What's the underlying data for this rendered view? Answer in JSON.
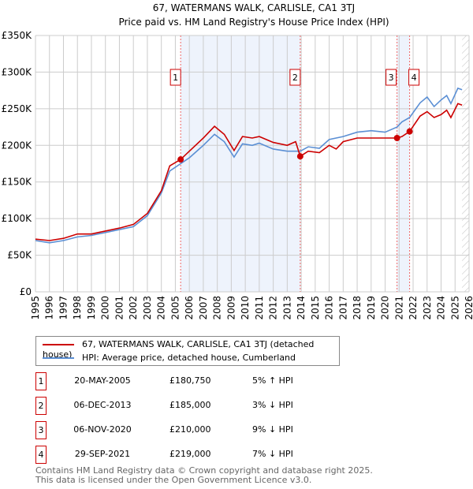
{
  "chart_data": {
    "type": "line",
    "title": "67, WATERMANS WALK, CARLISLE, CA1 3TJ",
    "subtitle": "Price paid vs. HM Land Registry's House Price Index (HPI)",
    "xlim": [
      1995,
      2026
    ],
    "ylim": [
      0,
      350000
    ],
    "x_ticks": [
      "1995",
      "1996",
      "1997",
      "1998",
      "1999",
      "2000",
      "2001",
      "2002",
      "2003",
      "2004",
      "2005",
      "2006",
      "2007",
      "2008",
      "2009",
      "2010",
      "2011",
      "2012",
      "2013",
      "2014",
      "2015",
      "2016",
      "2017",
      "2018",
      "2019",
      "2020",
      "2021",
      "2022",
      "2023",
      "2024",
      "2025",
      "2026"
    ],
    "y_ticks": [
      {
        "v": 0,
        "label": "£0"
      },
      {
        "v": 50000,
        "label": "£50K"
      },
      {
        "v": 100000,
        "label": "£100K"
      },
      {
        "v": 150000,
        "label": "£150K"
      },
      {
        "v": 200000,
        "label": "£200K"
      },
      {
        "v": 250000,
        "label": "£250K"
      },
      {
        "v": 300000,
        "label": "£300K"
      },
      {
        "v": 350000,
        "label": "£350K"
      }
    ],
    "grid": true,
    "series": [
      {
        "name": "67, WATERMANS WALK, CARLISLE, CA1 3TJ (detached house)",
        "color": "#cc0000",
        "x": [
          1995,
          1996,
          1997,
          1998,
          1999,
          2000,
          2001,
          2002,
          2003,
          2004,
          2004.6,
          2005.38,
          2006,
          2007,
          2007.8,
          2008.5,
          2009.2,
          2009.8,
          2010.5,
          2011,
          2012,
          2013,
          2013.6,
          2013.93,
          2014.5,
          2015.3,
          2016,
          2016.5,
          2017,
          2018,
          2019,
          2020,
          2020.85,
          2021.2,
          2021.75,
          2022.5,
          2023,
          2023.5,
          2024,
          2024.4,
          2024.7,
          2025.2,
          2025.5
        ],
        "y": [
          72000,
          70000,
          73000,
          79000,
          79000,
          83000,
          87000,
          92000,
          107000,
          138000,
          172000,
          180750,
          192000,
          210000,
          226000,
          215000,
          193000,
          212000,
          210000,
          212000,
          204000,
          200000,
          205000,
          185000,
          192000,
          190000,
          200000,
          195000,
          205000,
          210000,
          210000,
          210000,
          210000,
          212000,
          219000,
          240000,
          246000,
          238000,
          242000,
          248000,
          238000,
          257000,
          255000
        ]
      },
      {
        "name": "HPI: Average price, detached house, Cumberland",
        "color": "#5b8fd4",
        "x": [
          1995,
          1996,
          1997,
          1998,
          1999,
          2000,
          2001,
          2002,
          2003,
          2004,
          2004.6,
          2005.38,
          2006,
          2007,
          2007.8,
          2008.5,
          2009.2,
          2009.8,
          2010.5,
          2011,
          2012,
          2013,
          2013.93,
          2014.5,
          2015.3,
          2016,
          2017,
          2018,
          2019,
          2020,
          2020.85,
          2021.2,
          2021.75,
          2022.5,
          2023,
          2023.5,
          2024,
          2024.4,
          2024.7,
          2025.2,
          2025.5
        ],
        "y": [
          70000,
          67000,
          70000,
          75000,
          77000,
          81000,
          85000,
          89000,
          104000,
          135000,
          165000,
          175000,
          183000,
          200000,
          215000,
          205000,
          184000,
          202000,
          200000,
          203000,
          195000,
          192000,
          192000,
          198000,
          196000,
          208000,
          212000,
          218000,
          220000,
          218000,
          225000,
          232000,
          238000,
          258000,
          266000,
          253000,
          262000,
          268000,
          257000,
          278000,
          276000
        ]
      }
    ],
    "sales": [
      {
        "label": "1",
        "x": 2005.38,
        "y": 180750,
        "date": "20-MAY-2005",
        "price": "£180,750",
        "hpi": "5% ↑ HPI"
      },
      {
        "label": "2",
        "x": 2013.93,
        "y": 185000,
        "date": "06-DEC-2013",
        "price": "£185,000",
        "hpi": "3% ↓ HPI"
      },
      {
        "label": "3",
        "x": 2020.85,
        "y": 210000,
        "date": "06-NOV-2020",
        "price": "£210,000",
        "hpi": "9% ↓ HPI"
      },
      {
        "label": "4",
        "x": 2021.75,
        "y": 219000,
        "date": "29-SEP-2021",
        "price": "£219,000",
        "hpi": "7% ↓ HPI"
      }
    ],
    "shaded_periods": [
      [
        2005.38,
        2013.93
      ],
      [
        2020.85,
        2021.75
      ]
    ],
    "forecast_start": 2025.5
  },
  "legend": {
    "property": "67, WATERMANS WALK, CARLISLE, CA1 3TJ (detached house)",
    "hpi": "HPI: Average price, detached house, Cumberland"
  },
  "footer": {
    "line1": "Contains HM Land Registry data © Crown copyright and database right 2025.",
    "line2": "This data is licensed under the Open Government Licence v3.0."
  }
}
